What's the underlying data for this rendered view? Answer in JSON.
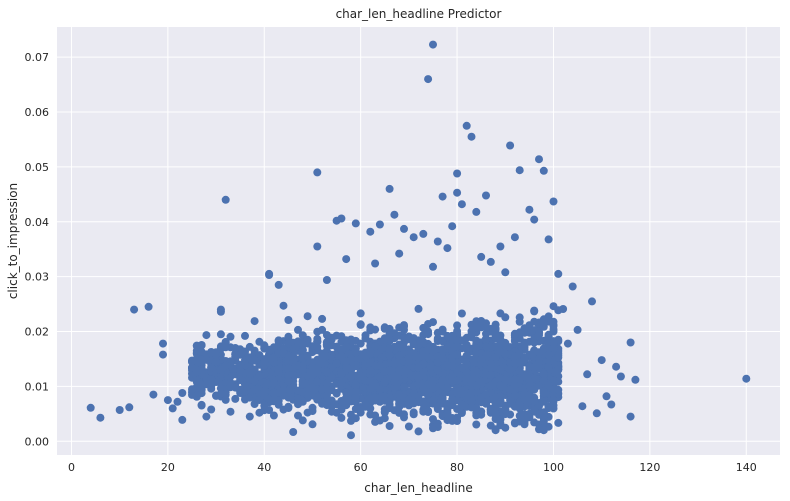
{
  "chart_data": {
    "type": "scatter",
    "title": "char_len_headline Predictor",
    "xlabel": "char_len_headline",
    "ylabel": "click_to_impression",
    "xlim": [
      -3,
      147
    ],
    "ylim": [
      -0.0025,
      0.0755
    ],
    "x_ticks": [
      0,
      20,
      40,
      60,
      80,
      100,
      120,
      140
    ],
    "y_ticks": [
      0.0,
      0.01,
      0.02,
      0.03,
      0.04,
      0.05,
      0.06,
      0.07
    ],
    "x_tick_labels": [
      "0",
      "20",
      "40",
      "60",
      "80",
      "100",
      "120",
      "140"
    ],
    "y_tick_labels": [
      "0.00",
      "0.01",
      "0.02",
      "0.03",
      "0.04",
      "0.05",
      "0.06",
      "0.07"
    ],
    "grid": true,
    "marker_color": "#4c72b0",
    "background_color": "#eaeaf2",
    "points": [
      [
        4,
        0.0061
      ],
      [
        6,
        0.0043
      ],
      [
        10,
        0.0057
      ],
      [
        12,
        0.0062
      ],
      [
        13,
        0.024
      ],
      [
        16,
        0.0245
      ],
      [
        17,
        0.0085
      ],
      [
        19,
        0.0178
      ],
      [
        19,
        0.0158
      ],
      [
        20,
        0.0075
      ],
      [
        21,
        0.006
      ],
      [
        22,
        0.0072
      ],
      [
        23,
        0.0039
      ],
      [
        23,
        0.0088
      ],
      [
        25,
        0.0095
      ],
      [
        25,
        0.0147
      ],
      [
        26,
        0.0165
      ],
      [
        26,
        0.0081
      ],
      [
        27,
        0.0163
      ],
      [
        27,
        0.0131
      ],
      [
        28,
        0.0104
      ],
      [
        28,
        0.0045
      ],
      [
        29,
        0.0058
      ],
      [
        30,
        0.0158
      ],
      [
        31,
        0.0195
      ],
      [
        31,
        0.024
      ],
      [
        31,
        0.0236
      ],
      [
        32,
        0.044
      ],
      [
        32,
        0.0138
      ],
      [
        33,
        0.0054
      ],
      [
        34,
        0.017
      ],
      [
        35,
        0.0128
      ],
      [
        36,
        0.0192
      ],
      [
        37,
        0.0045
      ],
      [
        38,
        0.0219
      ],
      [
        39,
        0.0052
      ],
      [
        40,
        0.0175
      ],
      [
        41,
        0.0305
      ],
      [
        41,
        0.0303
      ],
      [
        42,
        0.0047
      ],
      [
        43,
        0.0285
      ],
      [
        44,
        0.0247
      ],
      [
        45,
        0.0221
      ],
      [
        46,
        0.0017
      ],
      [
        47,
        0.0203
      ],
      [
        48,
        0.0038
      ],
      [
        49,
        0.0228
      ],
      [
        50,
        0.0031
      ],
      [
        51,
        0.049
      ],
      [
        51,
        0.0355
      ],
      [
        52,
        0.0223
      ],
      [
        53,
        0.0294
      ],
      [
        55,
        0.0402
      ],
      [
        55,
        0.0052
      ],
      [
        56,
        0.0406
      ],
      [
        57,
        0.0332
      ],
      [
        58,
        0.0011
      ],
      [
        59,
        0.0397
      ],
      [
        60,
        0.0233
      ],
      [
        62,
        0.0382
      ],
      [
        63,
        0.0324
      ],
      [
        64,
        0.0395
      ],
      [
        65,
        0.0042
      ],
      [
        66,
        0.046
      ],
      [
        67,
        0.0413
      ],
      [
        68,
        0.0342
      ],
      [
        69,
        0.0387
      ],
      [
        70,
        0.0027
      ],
      [
        71,
        0.0372
      ],
      [
        72,
        0.0018
      ],
      [
        73,
        0.0378
      ],
      [
        74,
        0.066
      ],
      [
        75,
        0.0318
      ],
      [
        75,
        0.0723
      ],
      [
        76,
        0.0364
      ],
      [
        77,
        0.0446
      ],
      [
        78,
        0.0352
      ],
      [
        79,
        0.0392
      ],
      [
        80,
        0.0488
      ],
      [
        80,
        0.0453
      ],
      [
        81,
        0.0432
      ],
      [
        82,
        0.0575
      ],
      [
        83,
        0.0555
      ],
      [
        84,
        0.0418
      ],
      [
        85,
        0.0336
      ],
      [
        86,
        0.0448
      ],
      [
        87,
        0.0327
      ],
      [
        88,
        0.0022
      ],
      [
        89,
        0.0355
      ],
      [
        90,
        0.0308
      ],
      [
        91,
        0.0539
      ],
      [
        92,
        0.0372
      ],
      [
        93,
        0.0494
      ],
      [
        94,
        0.0031
      ],
      [
        95,
        0.0422
      ],
      [
        96,
        0.0404
      ],
      [
        97,
        0.0514
      ],
      [
        98,
        0.0493
      ],
      [
        99,
        0.0368
      ],
      [
        100,
        0.0437
      ],
      [
        101,
        0.0305
      ],
      [
        102,
        0.0241
      ],
      [
        103,
        0.0178
      ],
      [
        104,
        0.0282
      ],
      [
        105,
        0.0203
      ],
      [
        106,
        0.0064
      ],
      [
        107,
        0.0122
      ],
      [
        108,
        0.0255
      ],
      [
        109,
        0.0051
      ],
      [
        110,
        0.0148
      ],
      [
        111,
        0.0082
      ],
      [
        112,
        0.0067
      ],
      [
        113,
        0.0136
      ],
      [
        114,
        0.0118
      ],
      [
        116,
        0.018
      ],
      [
        116,
        0.0045
      ],
      [
        117,
        0.0112
      ],
      [
        140,
        0.0114
      ],
      [
        45,
        0.011
      ],
      [
        48,
        0.013
      ],
      [
        52,
        0.0095
      ],
      [
        55,
        0.0142
      ],
      [
        58,
        0.0118
      ],
      [
        61,
        0.0155
      ],
      [
        63,
        0.0102
      ],
      [
        66,
        0.0168
      ],
      [
        69,
        0.0125
      ],
      [
        72,
        0.0176
      ],
      [
        75,
        0.0108
      ],
      [
        78,
        0.0192
      ],
      [
        81,
        0.0134
      ],
      [
        84,
        0.0208
      ],
      [
        87,
        0.0121
      ],
      [
        90,
        0.0226
      ],
      [
        93,
        0.0143
      ],
      [
        96,
        0.0218
      ],
      [
        99,
        0.0157
      ],
      [
        47,
        0.0072
      ],
      [
        53,
        0.0066
      ],
      [
        59,
        0.0081
      ],
      [
        65,
        0.0074
      ],
      [
        71,
        0.0069
      ],
      [
        77,
        0.0077
      ],
      [
        83,
        0.0088
      ],
      [
        89,
        0.0071
      ],
      [
        95,
        0.0079
      ],
      [
        100,
        0.0095
      ]
    ],
    "dense_band": {
      "x_range": [
        40,
        101
      ],
      "y_center": 0.0125,
      "y_spread": 0.009,
      "count": 2600
    }
  }
}
